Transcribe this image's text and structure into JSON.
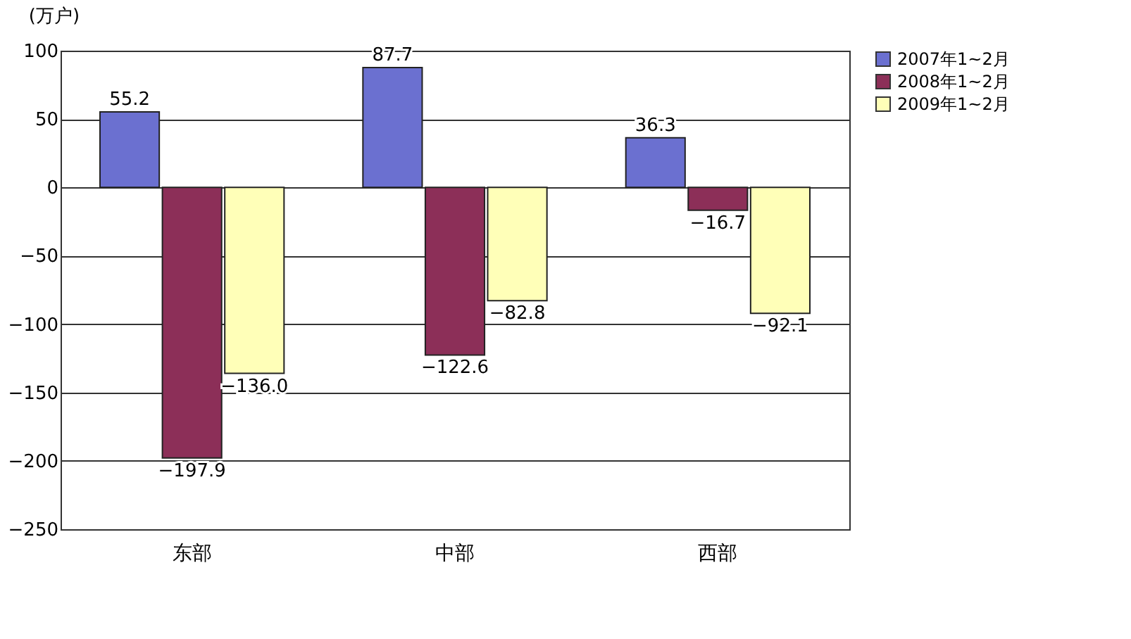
{
  "chart_data": {
    "type": "bar",
    "ylabel": "(万户)",
    "categories": [
      "东部",
      "中部",
      "西部"
    ],
    "series": [
      {
        "name": "2007年1~2月",
        "color": "#6b70d0",
        "values": [
          55.2,
          87.7,
          36.3
        ],
        "value_labels": [
          "55.2",
          "87.7",
          "36.3"
        ]
      },
      {
        "name": "2008年1~2月",
        "color": "#8c2f58",
        "values": [
          -197.9,
          -122.6,
          -16.7
        ],
        "value_labels": [
          "−197.9",
          "−122.6",
          "−16.7"
        ]
      },
      {
        "name": "2009年1~2月",
        "color": "#ffffb8",
        "values": [
          -136.0,
          -82.8,
          -92.1
        ],
        "value_labels": [
          "−136.0",
          "−82.8",
          "−92.1"
        ]
      }
    ],
    "ylim": [
      -250,
      100
    ],
    "yticks": [
      -250,
      -200,
      -150,
      -100,
      -50,
      0,
      50,
      100
    ],
    "grid": "y",
    "legend": "right"
  }
}
